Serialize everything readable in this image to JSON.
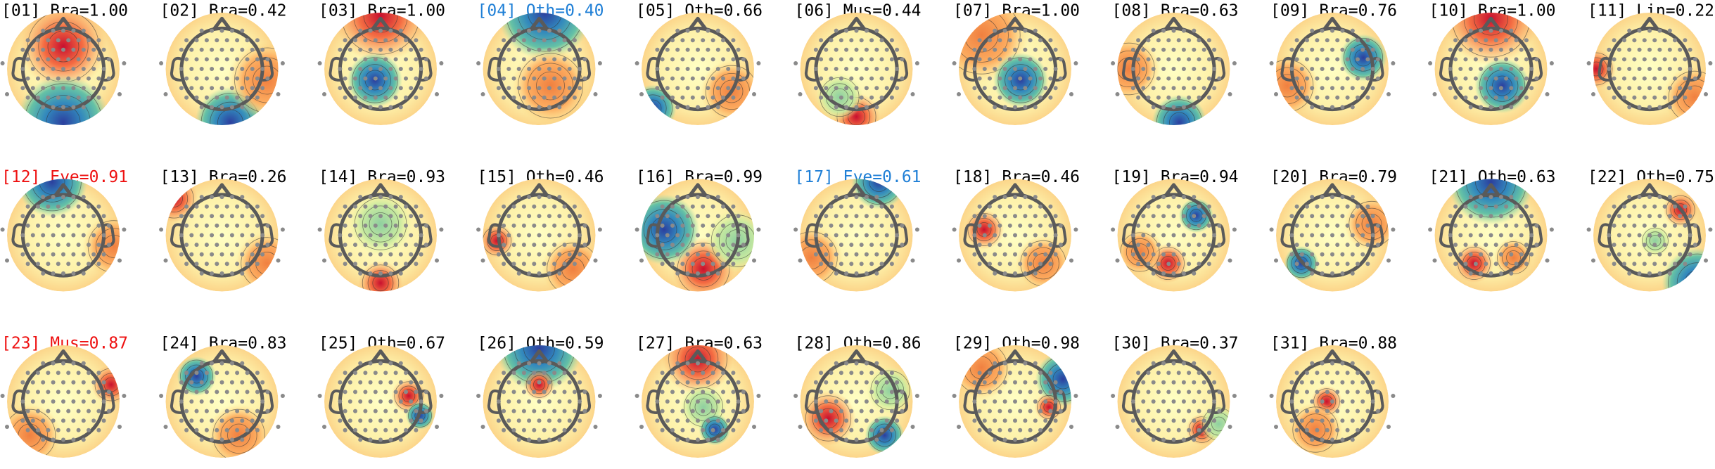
{
  "components": [
    {
      "label": "[01] Bra=1.00",
      "color": "#000000"
    },
    {
      "label": "[02] Bra=0.42",
      "color": "#000000"
    },
    {
      "label": "[03] Bra=1.00",
      "color": "#000000"
    },
    {
      "label": "[04] Oth=0.40",
      "color": "#1f7fd6"
    },
    {
      "label": "[05] Oth=0.66",
      "color": "#000000"
    },
    {
      "label": "[06] Mus=0.44",
      "color": "#000000"
    },
    {
      "label": "[07] Bra=1.00",
      "color": "#000000"
    },
    {
      "label": "[08] Bra=0.63",
      "color": "#000000"
    },
    {
      "label": "[09] Bra=0.76",
      "color": "#000000"
    },
    {
      "label": "[10] Bra=1.00",
      "color": "#000000"
    },
    {
      "label": "[11] Lin=0.22",
      "color": "#000000"
    },
    {
      "label": "[12] Eye=0.91",
      "color": "#ee1111"
    },
    {
      "label": "[13] Bra=0.26",
      "color": "#000000"
    },
    {
      "label": "[14] Bra=0.93",
      "color": "#000000"
    },
    {
      "label": "[15] Oth=0.46",
      "color": "#000000"
    },
    {
      "label": "[16] Bra=0.99",
      "color": "#000000"
    },
    {
      "label": "[17] Eye=0.61",
      "color": "#1f7fd6"
    },
    {
      "label": "[18] Bra=0.46",
      "color": "#000000"
    },
    {
      "label": "[19] Bra=0.94",
      "color": "#000000"
    },
    {
      "label": "[20] Bra=0.79",
      "color": "#000000"
    },
    {
      "label": "[21] Oth=0.63",
      "color": "#000000"
    },
    {
      "label": "[22] Oth=0.75",
      "color": "#000000"
    },
    {
      "label": "[23] Mus=0.87",
      "color": "#ee1111"
    },
    {
      "label": "[24] Bra=0.83",
      "color": "#000000"
    },
    {
      "label": "[25] Oth=0.67",
      "color": "#000000"
    },
    {
      "label": "[26] Oth=0.59",
      "color": "#000000"
    },
    {
      "label": "[27] Bra=0.63",
      "color": "#000000"
    },
    {
      "label": "[28] Oth=0.86",
      "color": "#000000"
    },
    {
      "label": "[29] Oth=0.98",
      "color": "#000000"
    },
    {
      "label": "[30] Bra=0.37",
      "color": "#000000"
    },
    {
      "label": "[31] Bra=0.88",
      "color": "#000000"
    }
  ]
}
